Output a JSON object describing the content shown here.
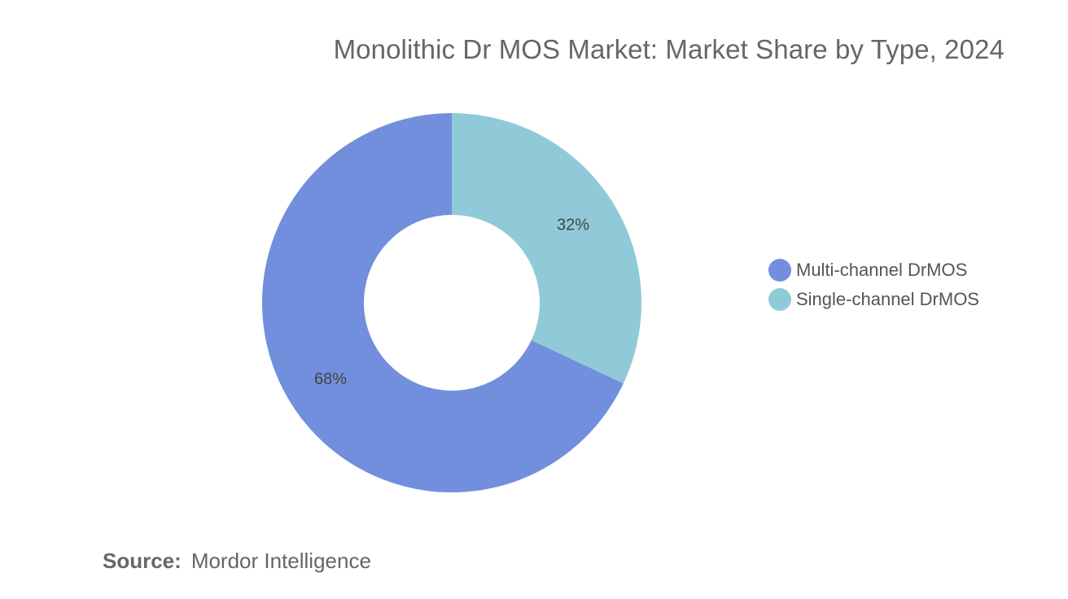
{
  "chart_data": {
    "type": "pie",
    "title": "Monolithic Dr MOS Market: Market Share by Type, 2024",
    "categories": [
      "Multi-channel DrMOS",
      "Single-channel DrMOS"
    ],
    "values": [
      68,
      32
    ],
    "data_labels": [
      "68%",
      "32%"
    ],
    "colors": [
      "#728fdd",
      "#90cad8"
    ],
    "donut": true,
    "legend_position": "right"
  },
  "source": {
    "label": "Source:",
    "value": "Mordor Intelligence"
  }
}
